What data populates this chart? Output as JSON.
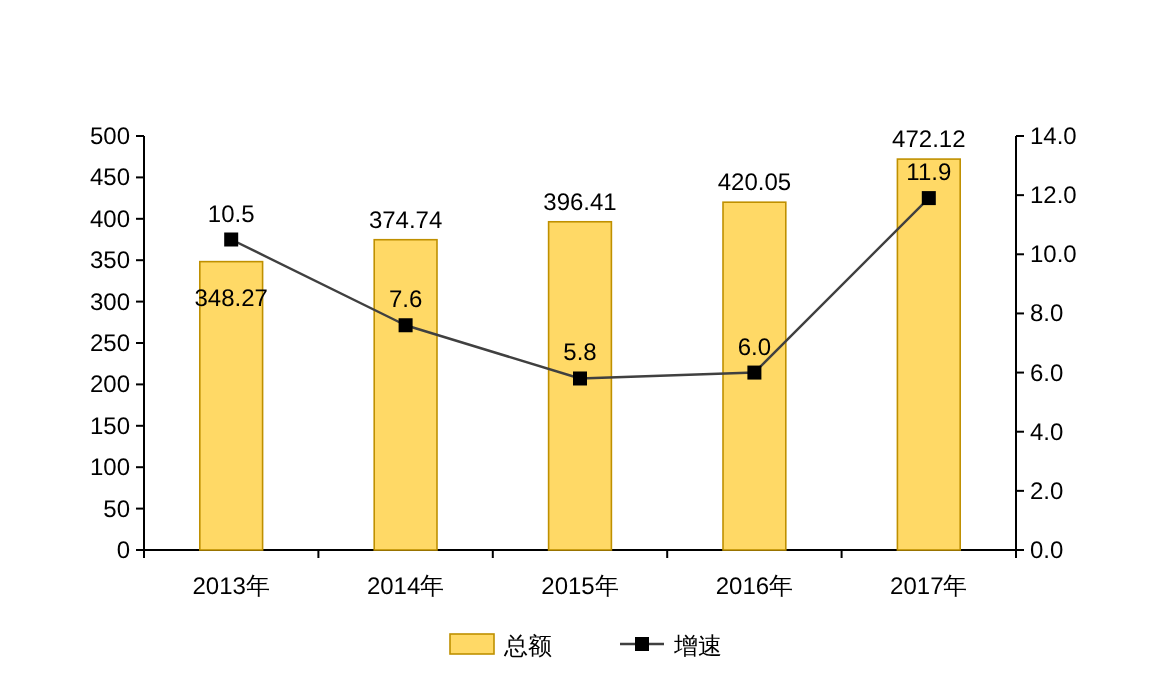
{
  "chart_data": {
    "type": "bar",
    "categories": [
      "2013年",
      "2014年",
      "2015年",
      "2016年",
      "2017年"
    ],
    "series": [
      {
        "name": "总额",
        "color": "#ffd966",
        "values": [
          348.27,
          374.74,
          396.41,
          420.05,
          472.12
        ],
        "value_labels": [
          "348.27",
          "374.74",
          "396.41",
          "420.05",
          "472.12"
        ]
      },
      {
        "name": "增速",
        "type": "line",
        "axis": "y2",
        "color": "#404040",
        "marker": "square",
        "values": [
          10.5,
          7.6,
          5.8,
          6.0,
          11.9
        ],
        "value_labels": [
          "10.5",
          "7.6",
          "5.8",
          "6.0",
          "11.9"
        ]
      }
    ],
    "ylim": [
      0,
      500
    ],
    "yticks": [
      0,
      50,
      100,
      150,
      200,
      250,
      300,
      350,
      400,
      450,
      500
    ],
    "y2lim": [
      0,
      14
    ],
    "y2ticks": [
      {
        "value": 0,
        "label": "0.0"
      },
      {
        "value": 2,
        "label": "2.0"
      },
      {
        "value": 4,
        "label": "4.0"
      },
      {
        "value": 6,
        "label": "6.0"
      },
      {
        "value": 8,
        "label": "8.0"
      },
      {
        "value": 10,
        "label": "10.0"
      },
      {
        "value": 12,
        "label": "12.0"
      },
      {
        "value": 14,
        "label": "14.0"
      }
    ],
    "legend": "bottom"
  }
}
